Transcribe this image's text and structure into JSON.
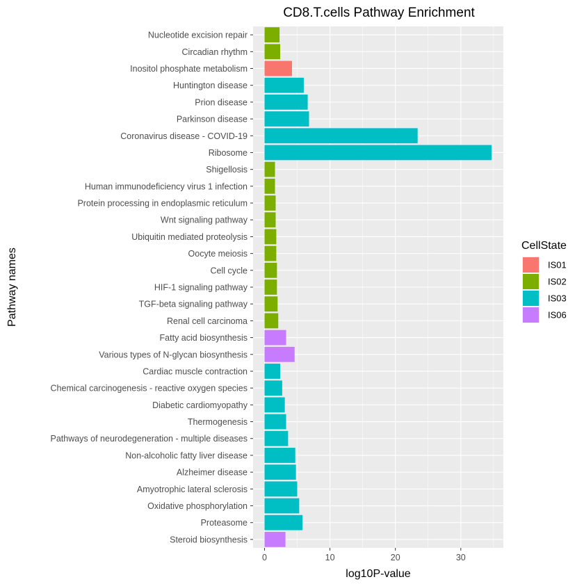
{
  "chart_data": {
    "type": "bar",
    "orientation": "horizontal",
    "title": "CD8.T.cells Pathway Enrichment",
    "xlabel": "log10P-value",
    "ylabel": "Pathway names",
    "xlim": [
      -1.75,
      36.5
    ],
    "xticks": [
      0,
      10,
      20,
      30
    ],
    "grid": true,
    "legend": {
      "title": "CellState",
      "placement": "right",
      "entries": [
        {
          "name": "IS01",
          "color": "#F8766D"
        },
        {
          "name": "IS02",
          "color": "#7CAE00"
        },
        {
          "name": "IS03",
          "color": "#00BFC4"
        },
        {
          "name": "IS06",
          "color": "#C77CFF"
        }
      ]
    },
    "bars": [
      {
        "label": "Nucleotide excision repair",
        "value": 2.3,
        "state": "IS02"
      },
      {
        "label": "Circadian rhythm",
        "value": 2.4,
        "state": "IS02"
      },
      {
        "label": "Inositol phosphate metabolism",
        "value": 4.2,
        "state": "IS01"
      },
      {
        "label": "Huntington disease",
        "value": 6.0,
        "state": "IS03"
      },
      {
        "label": "Prion disease",
        "value": 6.6,
        "state": "IS03"
      },
      {
        "label": "Parkinson disease",
        "value": 6.8,
        "state": "IS03"
      },
      {
        "label": "Coronavirus disease - COVID-19",
        "value": 23.4,
        "state": "IS03"
      },
      {
        "label": "Ribosome",
        "value": 34.7,
        "state": "IS03"
      },
      {
        "label": "Shigellosis",
        "value": 1.6,
        "state": "IS02"
      },
      {
        "label": "Human immunodeficiency virus 1 infection",
        "value": 1.6,
        "state": "IS02"
      },
      {
        "label": "Protein processing in endoplasmic reticulum",
        "value": 1.7,
        "state": "IS02"
      },
      {
        "label": "Wnt signaling pathway",
        "value": 1.7,
        "state": "IS02"
      },
      {
        "label": "Ubiquitin mediated proteolysis",
        "value": 1.8,
        "state": "IS02"
      },
      {
        "label": "Oocyte meiosis",
        "value": 1.8,
        "state": "IS02"
      },
      {
        "label": "Cell cycle",
        "value": 1.9,
        "state": "IS02"
      },
      {
        "label": "HIF-1 signaling pathway",
        "value": 1.9,
        "state": "IS02"
      },
      {
        "label": "TGF-beta signaling pathway",
        "value": 2.0,
        "state": "IS02"
      },
      {
        "label": "Renal cell carcinoma",
        "value": 2.1,
        "state": "IS02"
      },
      {
        "label": "Fatty acid biosynthesis",
        "value": 3.3,
        "state": "IS06"
      },
      {
        "label": "Various types of N-glycan biosynthesis",
        "value": 4.6,
        "state": "IS06"
      },
      {
        "label": "Cardiac muscle contraction",
        "value": 2.4,
        "state": "IS03"
      },
      {
        "label": "Chemical carcinogenesis - reactive oxygen species",
        "value": 2.7,
        "state": "IS03"
      },
      {
        "label": "Diabetic cardiomyopathy",
        "value": 3.1,
        "state": "IS03"
      },
      {
        "label": "Thermogenesis",
        "value": 3.3,
        "state": "IS03"
      },
      {
        "label": "Pathways of neurodegeneration - multiple diseases",
        "value": 3.6,
        "state": "IS03"
      },
      {
        "label": "Non-alcoholic fatty liver disease",
        "value": 4.7,
        "state": "IS03"
      },
      {
        "label": "Alzheimer disease",
        "value": 4.8,
        "state": "IS03"
      },
      {
        "label": "Amyotrophic lateral sclerosis",
        "value": 5.0,
        "state": "IS03"
      },
      {
        "label": "Oxidative phosphorylation",
        "value": 5.3,
        "state": "IS03"
      },
      {
        "label": "Proteasome",
        "value": 5.8,
        "state": "IS03"
      },
      {
        "label": "Steroid biosynthesis",
        "value": 3.2,
        "state": "IS06"
      }
    ]
  }
}
